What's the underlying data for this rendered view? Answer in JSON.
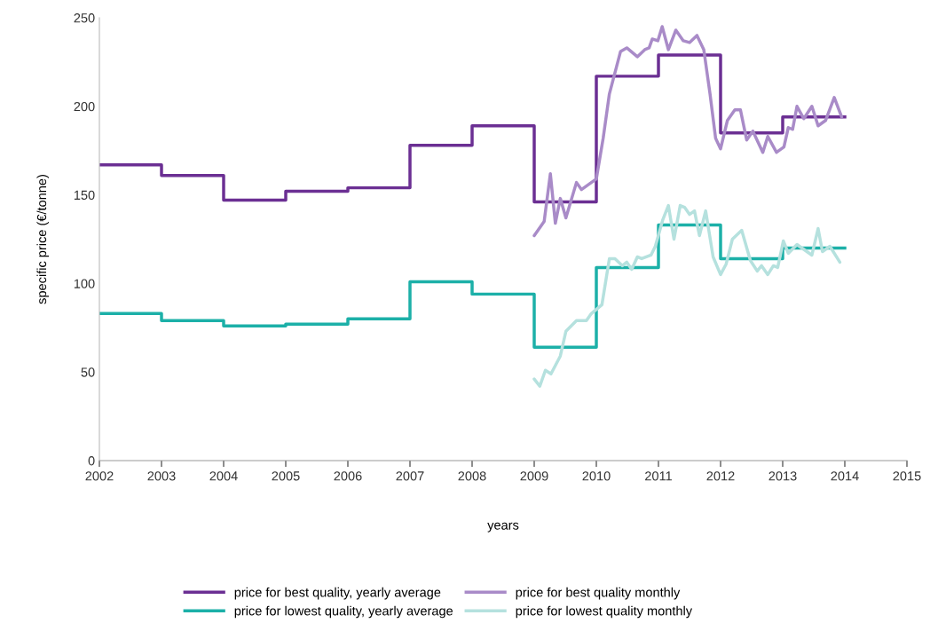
{
  "chart_data": {
    "type": "line",
    "xlabel": "years",
    "ylabel": "specific price (€/tonne)",
    "xlim": [
      2002,
      2015
    ],
    "xticks": [
      2002,
      2003,
      2004,
      2005,
      2006,
      2007,
      2008,
      2009,
      2010,
      2011,
      2012,
      2013,
      2014,
      2015
    ],
    "ylim": [
      0,
      250
    ],
    "yticks": [
      0,
      50,
      100,
      150,
      200,
      250
    ],
    "grid": false,
    "legend": "bottom",
    "marker": "none",
    "line_style": "solid",
    "series": [
      {
        "name": "price for best quality, yearly average",
        "type": "step",
        "color": "#6b2f93",
        "x": [
          2002,
          2003,
          2004,
          2005,
          2006,
          2007,
          2008,
          2009,
          2010,
          2011,
          2012,
          2013,
          2014
        ],
        "values": [
          167,
          161,
          147,
          152,
          154,
          178,
          189,
          146,
          217,
          229,
          185,
          194,
          194
        ]
      },
      {
        "name": "price for best quality monthly",
        "color": "#a98bc8",
        "x": [
          2009.0,
          2009.16,
          2009.26,
          2009.34,
          2009.42,
          2009.51,
          2009.68,
          2009.76,
          2010.0,
          2010.11,
          2010.21,
          2010.39,
          2010.49,
          2010.66,
          2010.78,
          2010.85,
          2010.9,
          2010.99,
          2011.06,
          2011.16,
          2011.28,
          2011.4,
          2011.5,
          2011.62,
          2011.73,
          2011.83,
          2011.92,
          2012.0,
          2012.11,
          2012.23,
          2012.32,
          2012.42,
          2012.52,
          2012.68,
          2012.76,
          2012.9,
          2013.02,
          2013.09,
          2013.16,
          2013.23,
          2013.34,
          2013.47,
          2013.57,
          2013.69,
          2013.83,
          2013.95
        ],
        "values": [
          127,
          135,
          162,
          134,
          148,
          137,
          157,
          153,
          159,
          182,
          207,
          231,
          233,
          228,
          232,
          233,
          238,
          237,
          245,
          232,
          243,
          237,
          236,
          240,
          232,
          207,
          182,
          176,
          192,
          198,
          198,
          181,
          186,
          174,
          183,
          174,
          177,
          188,
          187,
          200,
          193,
          200,
          189,
          192,
          205,
          194
        ]
      },
      {
        "name": "price for lowest quality, yearly average",
        "type": "step",
        "color": "#1cb0a8",
        "x": [
          2002,
          2003,
          2004,
          2005,
          2006,
          2007,
          2008,
          2009,
          2010,
          2011,
          2012,
          2013,
          2014
        ],
        "values": [
          83,
          79,
          76,
          77,
          80,
          101,
          94,
          64,
          109,
          133,
          114,
          120,
          120
        ]
      },
      {
        "name": "price for lowest quality monthly",
        "color": "#b5e1de",
        "x": [
          2009.0,
          2009.09,
          2009.18,
          2009.27,
          2009.42,
          2009.51,
          2009.68,
          2009.84,
          2009.92,
          2010.09,
          2010.21,
          2010.3,
          2010.42,
          2010.49,
          2010.57,
          2010.66,
          2010.73,
          2010.88,
          2010.95,
          2011.07,
          2011.16,
          2011.25,
          2011.35,
          2011.42,
          2011.5,
          2011.58,
          2011.66,
          2011.76,
          2011.88,
          2012.0,
          2012.09,
          2012.19,
          2012.34,
          2012.48,
          2012.59,
          2012.66,
          2012.76,
          2012.85,
          2012.92,
          2013.01,
          2013.09,
          2013.23,
          2013.35,
          2013.47,
          2013.57,
          2013.64,
          2013.76,
          2013.92
        ],
        "values": [
          46,
          42,
          51,
          49,
          59,
          73,
          79,
          79,
          83,
          88,
          114,
          114,
          110,
          112,
          108,
          115,
          114,
          116,
          121,
          136,
          144,
          125,
          144,
          143,
          139,
          141,
          127,
          141,
          115,
          105,
          111,
          125,
          130,
          113,
          107,
          110,
          105,
          110,
          109,
          124,
          117,
          122,
          119,
          116,
          131,
          118,
          121,
          112
        ]
      }
    ]
  }
}
